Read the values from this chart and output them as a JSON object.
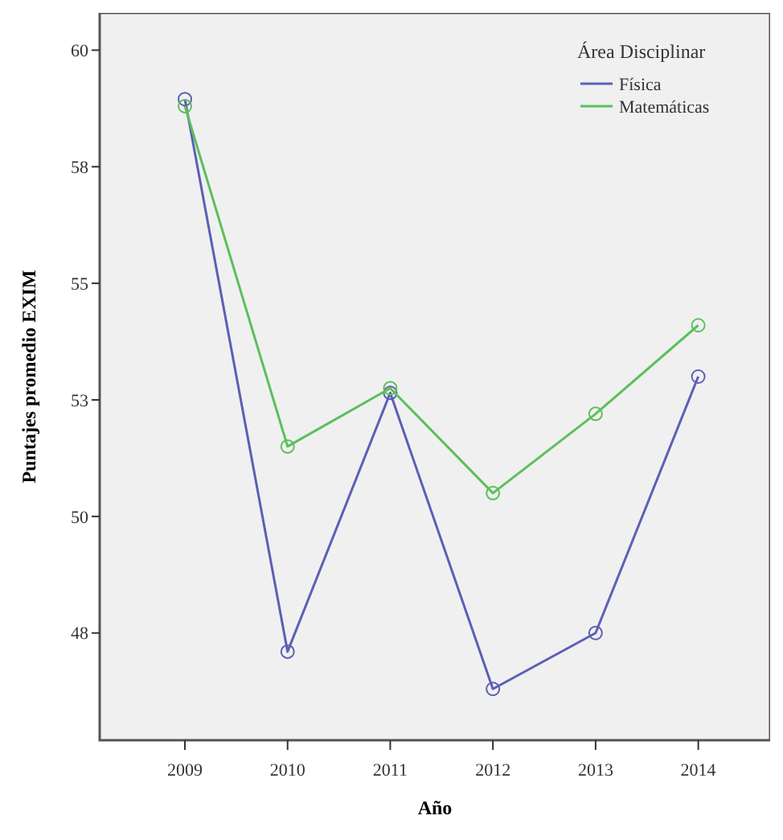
{
  "chart_data": {
    "type": "line",
    "xlabel": "Año",
    "ylabel": "Puntajes promedio EXIM",
    "legend_title": "Área Disciplinar",
    "x": [
      2009,
      2010,
      2011,
      2012,
      2013,
      2014
    ],
    "series": [
      {
        "name": "Física",
        "color": "#5b5fb5",
        "values": [
          58.95,
          47.1,
          52.65,
          46.3,
          47.5,
          53.0
        ]
      },
      {
        "name": "Matemáticas",
        "color": "#5cbf5c",
        "values": [
          58.8,
          51.5,
          52.75,
          50.5,
          52.2,
          54.1
        ]
      }
    ],
    "xlim": [
      2008.17,
      2014.7
    ],
    "xticks": [
      2009,
      2010,
      2011,
      2012,
      2013,
      2014
    ],
    "ylim": [
      45.2,
      60.8
    ],
    "yticks": [
      {
        "value": 47.5,
        "label": "48"
      },
      {
        "value": 50,
        "label": "50"
      },
      {
        "value": 52.5,
        "label": "53"
      },
      {
        "value": 55,
        "label": "55"
      },
      {
        "value": 57.5,
        "label": "58"
      },
      {
        "value": 60,
        "label": "60"
      }
    ],
    "legend": "top right",
    "marker": "circle",
    "line_style": "solid",
    "grid": false
  }
}
